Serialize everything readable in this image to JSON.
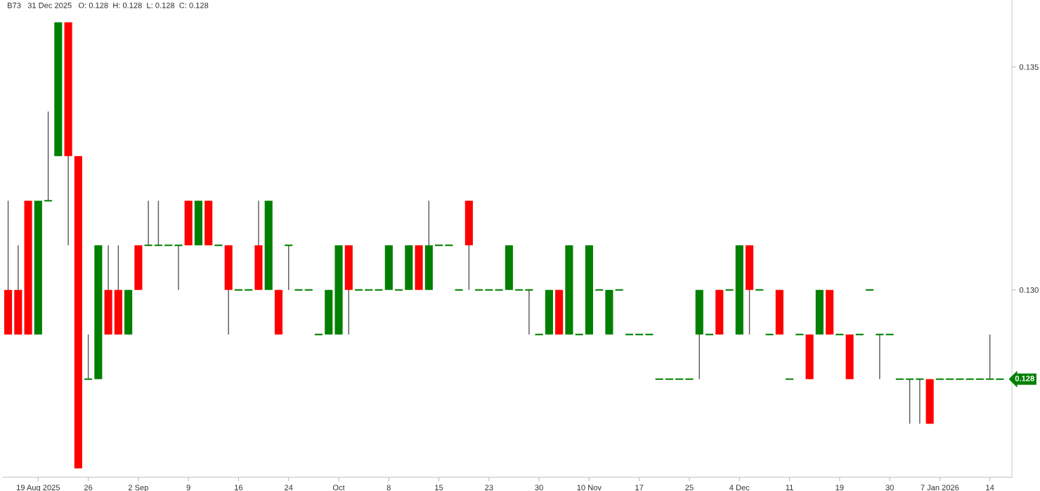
{
  "chart_data": {
    "type": "candlestick",
    "title": "B73   31 Dec 2025   O: 0.128  H: 0.128  L: 0.128  C: 0.128",
    "categories": [
      null,
      null,
      null,
      "19 Aug 2025",
      null,
      null,
      null,
      null,
      "26",
      null,
      null,
      null,
      null,
      "2 Sep",
      null,
      null,
      null,
      null,
      "9",
      null,
      null,
      null,
      null,
      "16",
      null,
      null,
      null,
      null,
      "24",
      null,
      null,
      null,
      null,
      "Oct",
      null,
      null,
      null,
      null,
      "8",
      null,
      null,
      null,
      null,
      "15",
      null,
      null,
      null,
      null,
      "23",
      null,
      null,
      null,
      null,
      "30",
      null,
      null,
      null,
      null,
      "10 Nov",
      null,
      null,
      null,
      null,
      "17",
      null,
      null,
      null,
      null,
      "25",
      null,
      null,
      null,
      null,
      "4 Dec",
      null,
      null,
      null,
      null,
      "11",
      null,
      null,
      null,
      null,
      "19",
      null,
      null,
      null,
      null,
      "30",
      null,
      null,
      null,
      null,
      "7 Jan 2026",
      null,
      null,
      null,
      null,
      "14",
      null
    ],
    "ohlc": [
      [
        0.13,
        0.132,
        0.129,
        0.129
      ],
      [
        0.13,
        0.131,
        0.129,
        0.129
      ],
      [
        0.132,
        0.132,
        0.129,
        0.129
      ],
      [
        0.129,
        0.132,
        0.129,
        0.132
      ],
      [
        0.132,
        0.134,
        0.132,
        0.132
      ],
      [
        0.133,
        0.136,
        0.133,
        0.136
      ],
      [
        0.136,
        0.136,
        0.131,
        0.133
      ],
      [
        0.133,
        0.133,
        0.126,
        0.126
      ],
      [
        0.128,
        0.129,
        0.128,
        0.128
      ],
      [
        0.128,
        0.131,
        0.128,
        0.131
      ],
      [
        0.13,
        0.131,
        0.129,
        0.129
      ],
      [
        0.13,
        0.131,
        0.129,
        0.129
      ],
      [
        0.129,
        0.13,
        0.129,
        0.13
      ],
      [
        0.131,
        0.131,
        0.13,
        0.13
      ],
      [
        0.131,
        0.132,
        0.131,
        0.131
      ],
      [
        0.131,
        0.132,
        0.131,
        0.131
      ],
      [
        0.131,
        0.131,
        0.131,
        0.131
      ],
      [
        0.131,
        0.131,
        0.13,
        0.131
      ],
      [
        0.132,
        0.132,
        0.131,
        0.131
      ],
      [
        0.131,
        0.132,
        0.131,
        0.132
      ],
      [
        0.132,
        0.132,
        0.131,
        0.131
      ],
      [
        0.131,
        0.131,
        0.131,
        0.131
      ],
      [
        0.131,
        0.131,
        0.129,
        0.13
      ],
      [
        0.13,
        0.13,
        0.13,
        0.13
      ],
      [
        0.13,
        0.13,
        0.13,
        0.13
      ],
      [
        0.131,
        0.132,
        0.13,
        0.13
      ],
      [
        0.13,
        0.132,
        0.13,
        0.132
      ],
      [
        0.13,
        0.13,
        0.129,
        0.129
      ],
      [
        0.131,
        0.131,
        0.13,
        0.131
      ],
      [
        0.13,
        0.13,
        0.13,
        0.13
      ],
      [
        0.13,
        0.13,
        0.13,
        0.13
      ],
      [
        0.129,
        0.129,
        0.129,
        0.129
      ],
      [
        0.129,
        0.13,
        0.129,
        0.13
      ],
      [
        0.129,
        0.131,
        0.129,
        0.131
      ],
      [
        0.131,
        0.131,
        0.129,
        0.13
      ],
      [
        0.13,
        0.13,
        0.13,
        0.13
      ],
      [
        0.13,
        0.13,
        0.13,
        0.13
      ],
      [
        0.13,
        0.13,
        0.13,
        0.13
      ],
      [
        0.13,
        0.131,
        0.13,
        0.131
      ],
      [
        0.13,
        0.13,
        0.13,
        0.13
      ],
      [
        0.13,
        0.131,
        0.13,
        0.131
      ],
      [
        0.131,
        0.131,
        0.13,
        0.13
      ],
      [
        0.13,
        0.132,
        0.13,
        0.131
      ],
      [
        0.131,
        0.131,
        0.131,
        0.131
      ],
      [
        0.131,
        0.131,
        0.131,
        0.131
      ],
      [
        0.13,
        0.13,
        0.13,
        0.13
      ],
      [
        0.132,
        0.132,
        0.13,
        0.131
      ],
      [
        0.13,
        0.13,
        0.13,
        0.13
      ],
      [
        0.13,
        0.13,
        0.13,
        0.13
      ],
      [
        0.13,
        0.13,
        0.13,
        0.13
      ],
      [
        0.13,
        0.131,
        0.13,
        0.131
      ],
      [
        0.13,
        0.13,
        0.13,
        0.13
      ],
      [
        0.13,
        0.13,
        0.129,
        0.13
      ],
      [
        0.129,
        0.129,
        0.129,
        0.129
      ],
      [
        0.129,
        0.13,
        0.129,
        0.13
      ],
      [
        0.13,
        0.13,
        0.129,
        0.129
      ],
      [
        0.129,
        0.131,
        0.129,
        0.131
      ],
      [
        0.129,
        0.129,
        0.129,
        0.129
      ],
      [
        0.129,
        0.131,
        0.129,
        0.131
      ],
      [
        0.13,
        0.13,
        0.13,
        0.13
      ],
      [
        0.129,
        0.13,
        0.129,
        0.13
      ],
      [
        0.13,
        0.13,
        0.13,
        0.13
      ],
      [
        0.129,
        0.129,
        0.129,
        0.129
      ],
      [
        0.129,
        0.129,
        0.129,
        0.129
      ],
      [
        0.129,
        0.129,
        0.129,
        0.129
      ],
      [
        0.128,
        0.128,
        0.128,
        0.128
      ],
      [
        0.128,
        0.128,
        0.128,
        0.128
      ],
      [
        0.128,
        0.128,
        0.128,
        0.128
      ],
      [
        0.128,
        0.128,
        0.128,
        0.128
      ],
      [
        0.129,
        0.13,
        0.128,
        0.13
      ],
      [
        0.129,
        0.129,
        0.129,
        0.129
      ],
      [
        0.13,
        0.13,
        0.129,
        0.129
      ],
      [
        0.13,
        0.13,
        0.13,
        0.13
      ],
      [
        0.129,
        0.131,
        0.129,
        0.131
      ],
      [
        0.131,
        0.131,
        0.129,
        0.13
      ],
      [
        0.13,
        0.13,
        0.13,
        0.13
      ],
      [
        0.129,
        0.129,
        0.129,
        0.129
      ],
      [
        0.13,
        0.13,
        0.129,
        0.129
      ],
      [
        0.128,
        0.128,
        0.128,
        0.128
      ],
      [
        0.129,
        0.129,
        0.129,
        0.129
      ],
      [
        0.129,
        0.129,
        0.128,
        0.128
      ],
      [
        0.129,
        0.13,
        0.129,
        0.13
      ],
      [
        0.13,
        0.13,
        0.129,
        0.129
      ],
      [
        0.129,
        0.129,
        0.129,
        0.129
      ],
      [
        0.129,
        0.129,
        0.128,
        0.128
      ],
      [
        0.129,
        0.129,
        0.129,
        0.129
      ],
      [
        0.13,
        0.13,
        0.13,
        0.13
      ],
      [
        0.129,
        0.129,
        0.128,
        0.129
      ],
      [
        0.129,
        0.129,
        0.129,
        0.129
      ],
      [
        0.128,
        0.128,
        0.128,
        0.128
      ],
      [
        0.128,
        0.128,
        0.127,
        0.128
      ],
      [
        0.128,
        0.128,
        0.127,
        0.128
      ],
      [
        0.128,
        0.128,
        0.127,
        0.127
      ],
      [
        0.128,
        0.128,
        0.128,
        0.128
      ],
      [
        0.128,
        0.128,
        0.128,
        0.128
      ],
      [
        0.128,
        0.128,
        0.128,
        0.128
      ],
      [
        0.128,
        0.128,
        0.128,
        0.128
      ],
      [
        0.128,
        0.128,
        0.128,
        0.128
      ],
      [
        0.128,
        0.129,
        0.128,
        0.128
      ],
      [
        0.128,
        0.128,
        0.128,
        0.128
      ]
    ],
    "colors": [
      "#ff0000",
      "#ff0000",
      "#ff0000",
      "#008000",
      "#008000",
      "#008000",
      "#ff0000",
      "#ff0000",
      "#008000",
      "#008000",
      "#ff0000",
      "#ff0000",
      "#008000",
      "#ff0000",
      "#008000",
      "#008000",
      "#008000",
      "#008000",
      "#ff0000",
      "#008000",
      "#ff0000",
      "#008000",
      "#ff0000",
      "#008000",
      "#008000",
      "#ff0000",
      "#008000",
      "#ff0000",
      "#008000",
      "#008000",
      "#008000",
      "#008000",
      "#008000",
      "#008000",
      "#ff0000",
      "#008000",
      "#008000",
      "#008000",
      "#008000",
      "#008000",
      "#008000",
      "#ff0000",
      "#008000",
      "#008000",
      "#008000",
      "#008000",
      "#ff0000",
      "#008000",
      "#008000",
      "#008000",
      "#008000",
      "#008000",
      "#008000",
      "#008000",
      "#008000",
      "#ff0000",
      "#008000",
      "#008000",
      "#008000",
      "#008000",
      "#008000",
      "#008000",
      "#008000",
      "#008000",
      "#008000",
      "#008000",
      "#008000",
      "#008000",
      "#008000",
      "#008000",
      "#008000",
      "#ff0000",
      "#008000",
      "#008000",
      "#ff0000",
      "#008000",
      "#008000",
      "#ff0000",
      "#008000",
      "#008000",
      "#ff0000",
      "#008000",
      "#ff0000",
      "#008000",
      "#ff0000",
      "#008000",
      "#008000",
      "#008000",
      "#008000",
      "#008000",
      "#008000",
      "#008000",
      "#ff0000",
      "#008000",
      "#008000",
      "#008000",
      "#008000",
      "#008000",
      "#008000",
      "#008000"
    ],
    "ylim": [
      0.1258,
      0.1365
    ],
    "yticks": [
      {
        "value": 0.13,
        "label": "0.130"
      },
      0.135
    ],
    "annotations": [
      "0.128"
    ],
    "grid": false
  }
}
